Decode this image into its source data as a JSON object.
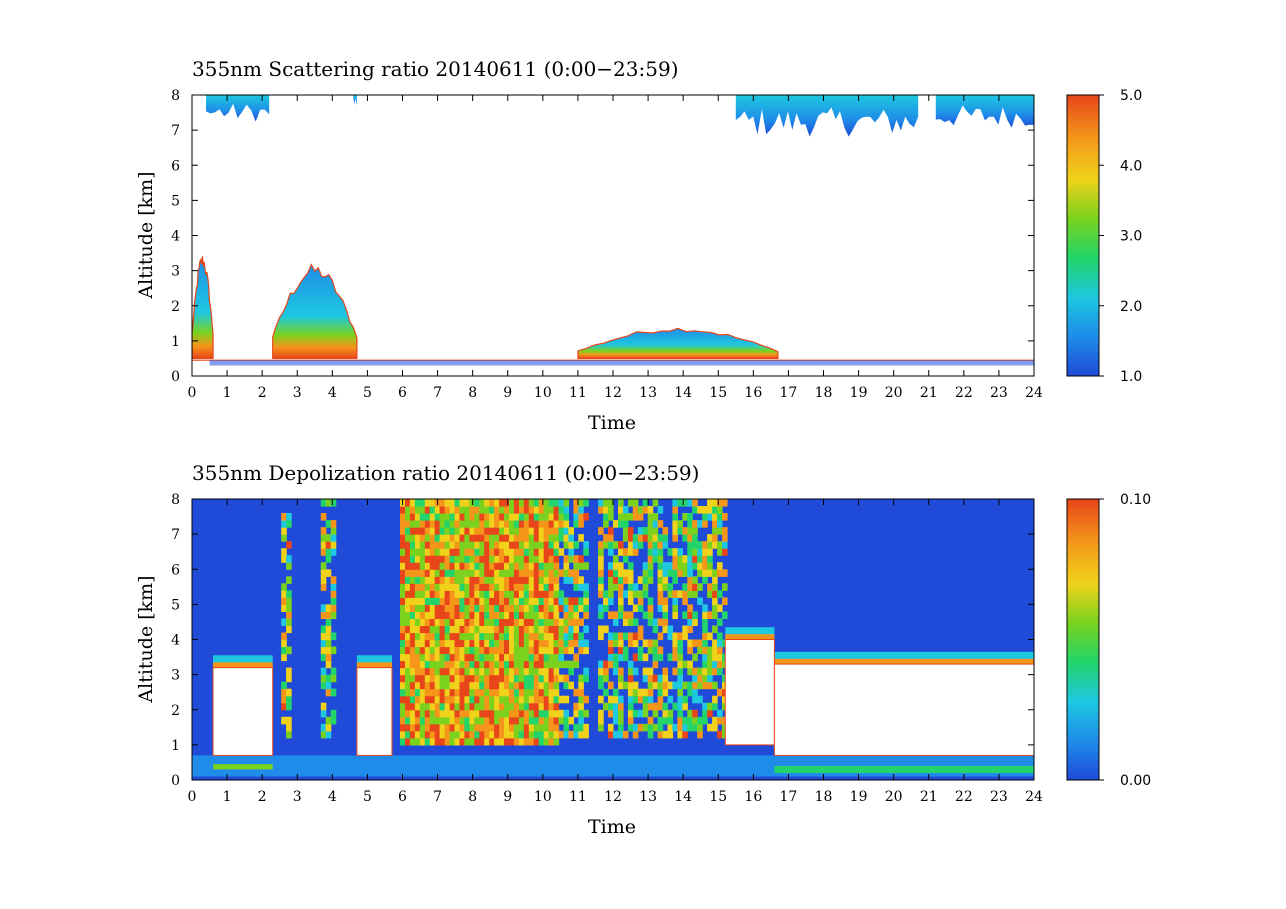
{
  "chart_data": [
    {
      "type": "heatmap",
      "title": "355nm Scattering ratio  20140611 (0:00−23:59)",
      "xlabel": "Time",
      "ylabel": "Altitude [km]",
      "xlim": [
        0,
        24
      ],
      "ylim": [
        0,
        8
      ],
      "x_ticks": [
        "0",
        "1",
        "2",
        "3",
        "4",
        "5",
        "6",
        "7",
        "8",
        "9",
        "10",
        "11",
        "12",
        "13",
        "14",
        "15",
        "16",
        "17",
        "18",
        "19",
        "20",
        "21",
        "22",
        "23",
        "24"
      ],
      "y_ticks": [
        "0",
        "1",
        "2",
        "3",
        "4",
        "5",
        "6",
        "7",
        "8"
      ],
      "colorbar": {
        "range": [
          1.0,
          5.0
        ],
        "tick_labels": [
          "1.0",
          "2.0",
          "3.0",
          "4.0",
          "5.0"
        ],
        "tick_values": [
          1.0,
          2.0,
          3.0,
          4.0,
          5.0
        ]
      },
      "features": {
        "upper_clouds": [
          {
            "t0": 0.4,
            "t1": 2.2,
            "zmin": 7.1,
            "zmax": 8.0,
            "value": 1.3
          },
          {
            "t0": 4.6,
            "t1": 4.7,
            "zmin": 7.6,
            "zmax": 8.0,
            "value": 1.3
          },
          {
            "t0": 15.5,
            "t1": 20.7,
            "zmin": 6.6,
            "zmax": 8.0,
            "value": 1.5
          },
          {
            "t0": 21.2,
            "t1": 24.0,
            "zmin": 6.9,
            "zmax": 8.0,
            "value": 1.4
          }
        ],
        "boundary_layer": [
          {
            "t0": 0.0,
            "t1": 0.6,
            "zmin": 0.5,
            "zmax": 3.5,
            "value": 2.0
          },
          {
            "t0": 2.3,
            "t1": 4.7,
            "zmin": 0.5,
            "zmax": 3.2,
            "value": 2.4
          },
          {
            "t0": 11.0,
            "t1": 16.7,
            "zmin": 0.5,
            "zmax": 1.4,
            "value": 3.0
          }
        ]
      }
    },
    {
      "type": "heatmap",
      "title": "355nm Depolization ratio  20140611 (0:00−23:59)",
      "xlabel": "Time",
      "ylabel": "Altitude [km]",
      "xlim": [
        0,
        24
      ],
      "ylim": [
        0,
        8
      ],
      "x_ticks": [
        "0",
        "1",
        "2",
        "3",
        "4",
        "5",
        "6",
        "7",
        "8",
        "9",
        "10",
        "11",
        "12",
        "13",
        "14",
        "15",
        "16",
        "17",
        "18",
        "19",
        "20",
        "21",
        "22",
        "23",
        "24"
      ],
      "y_ticks": [
        "0",
        "1",
        "2",
        "3",
        "4",
        "5",
        "6",
        "7",
        "8"
      ],
      "colorbar": {
        "range": [
          0.0,
          0.1
        ],
        "tick_labels": [
          "0.00",
          "0.10"
        ],
        "tick_values": [
          0.0,
          0.1
        ]
      },
      "features": {
        "noisy_region": [
          {
            "t0": 5.8,
            "t1": 10.4,
            "zmin": 0.9,
            "zmax": 8.0,
            "value": 0.07
          }
        ],
        "missing_blocks": [
          {
            "t0": 0.6,
            "t1": 2.3,
            "zmin": 0.7,
            "zmax": 3.2
          },
          {
            "t0": 4.7,
            "t1": 5.7,
            "zmin": 0.7,
            "zmax": 3.2
          },
          {
            "t0": 15.2,
            "t1": 16.6,
            "zmin": 1.0,
            "zmax": 4.0
          },
          {
            "t0": 16.6,
            "t1": 24.0,
            "zmin": 0.7,
            "zmax": 3.3
          }
        ]
      }
    }
  ],
  "colors": {
    "background": "#ffffff",
    "colormap": [
      "#1f4bd8",
      "#1e8ce8",
      "#1ec8e0",
      "#22d46a",
      "#7ad21e",
      "#f0d21a",
      "#f5951a",
      "#e8461a"
    ]
  }
}
